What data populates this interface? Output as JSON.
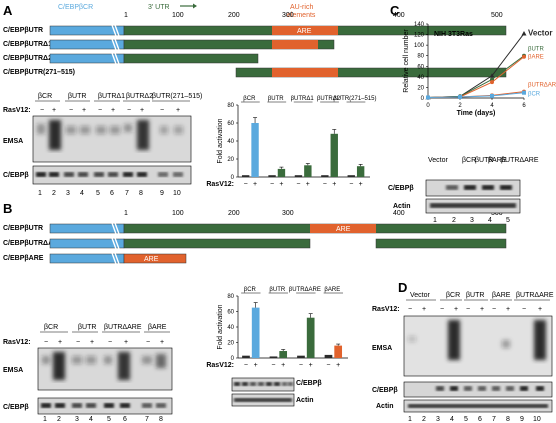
{
  "colors": {
    "blue": "#5aa9de",
    "green": "#3a6b3c",
    "orange": "#e1622d",
    "dark": "#2b2b2b"
  },
  "panelA": {
    "label": "A",
    "utr_arrow": "3′ UTR",
    "aurich_l1": "AU-rich",
    "aurich_l2": "elements",
    "cr_label": "C/EBPβCR",
    "ticks": [
      "1",
      "100",
      "200",
      "300",
      "400",
      "500"
    ],
    "constructs": [
      "C/EBPβUTR",
      "C/EBPβUTRΔ1",
      "C/EBPβUTRΔ2",
      "C/EBPβUTR(271–515)"
    ],
    "are": "ARE",
    "blot_headers": [
      "βCR",
      "βUTR",
      "βUTRΔ1",
      "βUTRΔ2",
      "βUTR(271–515)"
    ],
    "ras": "RasV12:",
    "signs": [
      "−",
      "+",
      "−",
      "+",
      "−",
      "+",
      "−",
      "+",
      "−",
      "+"
    ],
    "emsa": "EMSA",
    "cebpb": "C/EBPβ",
    "lanes": [
      "1",
      "2",
      "3",
      "4",
      "5",
      "6",
      "7",
      "8",
      "9",
      "10"
    ]
  },
  "chartA": {
    "type": "bar",
    "ylabel": "Fold activation",
    "ylim": [
      0,
      80
    ],
    "yticks": [
      "0",
      "20",
      "40",
      "60",
      "80"
    ],
    "categories": [
      "βCR",
      "βUTR",
      "βUTRΔ1",
      "βUTRΔ2",
      "βUTR(271–515)"
    ],
    "series": [
      {
        "values": [
          2,
          2,
          2,
          2,
          2
        ]
      },
      {
        "values": [
          60,
          9,
          13,
          48,
          12
        ]
      }
    ],
    "plus_colors": [
      "#5aa9de",
      "#3a6b3c",
      "#3a6b3c",
      "#3a6b3c",
      "#3a6b3c"
    ],
    "signs": [
      "−",
      "+",
      "−",
      "+",
      "−",
      "+",
      "−",
      "+",
      "−",
      "+"
    ],
    "ras": "RasV12:"
  },
  "panelB": {
    "label": "B",
    "ticks": [
      "1",
      "100",
      "200",
      "300",
      "400",
      "500"
    ],
    "constructs": [
      "C/EBPβUTR",
      "C/EBPβUTRΔARE",
      "C/EBPβARE"
    ],
    "are": "ARE",
    "blot_headers": [
      "βCR",
      "βUTR",
      "βUTRΔARE",
      "βARE"
    ],
    "ras": "RasV12:",
    "signs": [
      "−",
      "+",
      "−",
      "+",
      "−",
      "+",
      "−",
      "+"
    ],
    "emsa": "EMSA",
    "cebpb": "C/EBPβ",
    "actin": "Actin",
    "lanes": [
      "1",
      "2",
      "3",
      "4",
      "5",
      "6",
      "7",
      "8"
    ]
  },
  "chartB": {
    "type": "bar",
    "ylabel": "Fold activation",
    "ylim": [
      0,
      80
    ],
    "yticks": [
      "0",
      "20",
      "40",
      "60",
      "80"
    ],
    "categories": [
      "βCR",
      "βUTR",
      "βUTRΔARE",
      "βARE"
    ],
    "series": [
      {
        "values": [
          3,
          2,
          3,
          4
        ]
      },
      {
        "values": [
          65,
          9,
          52,
          16
        ]
      }
    ],
    "plus_colors": [
      "#5aa9de",
      "#3a6b3c",
      "#3a6b3c",
      "#e1622d"
    ],
    "signs": [
      "−",
      "+",
      "−",
      "+",
      "−",
      "+",
      "−",
      "+"
    ],
    "ras": "RasV12:"
  },
  "panelC": {
    "label": "C",
    "cell": "NIH 3T3Ras",
    "ylabel": "Relative cell number",
    "xlabel": "Time (days)",
    "legend": [
      "Vector",
      "βUTR",
      "βARE",
      "βUTRΔARE",
      "βCR"
    ],
    "blot_headers": [
      "Vector",
      "βCR",
      "βUTR",
      "βARE",
      "βUTRΔARE"
    ],
    "cebpb": "C/EBPβ",
    "actin": "Actin",
    "lanes": [
      "1",
      "2",
      "3",
      "4",
      "5"
    ]
  },
  "chartC": {
    "type": "line",
    "x": [
      0,
      2,
      4,
      6
    ],
    "xticks": [
      "0",
      "2",
      "4",
      "6"
    ],
    "ylim": [
      0,
      140
    ],
    "yticks": [
      "0",
      "20",
      "40",
      "60",
      "80",
      "100",
      "120",
      "140"
    ],
    "series": [
      {
        "name": "Vector",
        "color": "#2b2b2b",
        "values": [
          1,
          3,
          42,
          122
        ]
      },
      {
        "name": "βUTR",
        "color": "#3a6b3c",
        "values": [
          1,
          3,
          35,
          80
        ]
      },
      {
        "name": "βARE",
        "color": "#e1622d",
        "values": [
          1,
          2,
          30,
          78
        ]
      },
      {
        "name": "βUTRΔARE",
        "color": "#e1622d",
        "values": [
          1,
          2,
          5,
          12
        ]
      },
      {
        "name": "βCR",
        "color": "#5aa9de",
        "values": [
          1,
          2,
          4,
          10
        ]
      }
    ]
  },
  "panelD": {
    "label": "D",
    "blot_headers": [
      "Vector",
      "βCR",
      "βUTR",
      "βARE",
      "βUTRΔARE"
    ],
    "ras": "RasV12:",
    "signs": [
      "−",
      "+",
      "−",
      "+",
      "−",
      "+",
      "−",
      "+",
      "−",
      "+"
    ],
    "emsa": "EMSA",
    "cebpb": "C/EBPβ",
    "actin": "Actin",
    "lanes": [
      "1",
      "2",
      "3",
      "4",
      "5",
      "6",
      "7",
      "8",
      "9",
      "10"
    ]
  }
}
